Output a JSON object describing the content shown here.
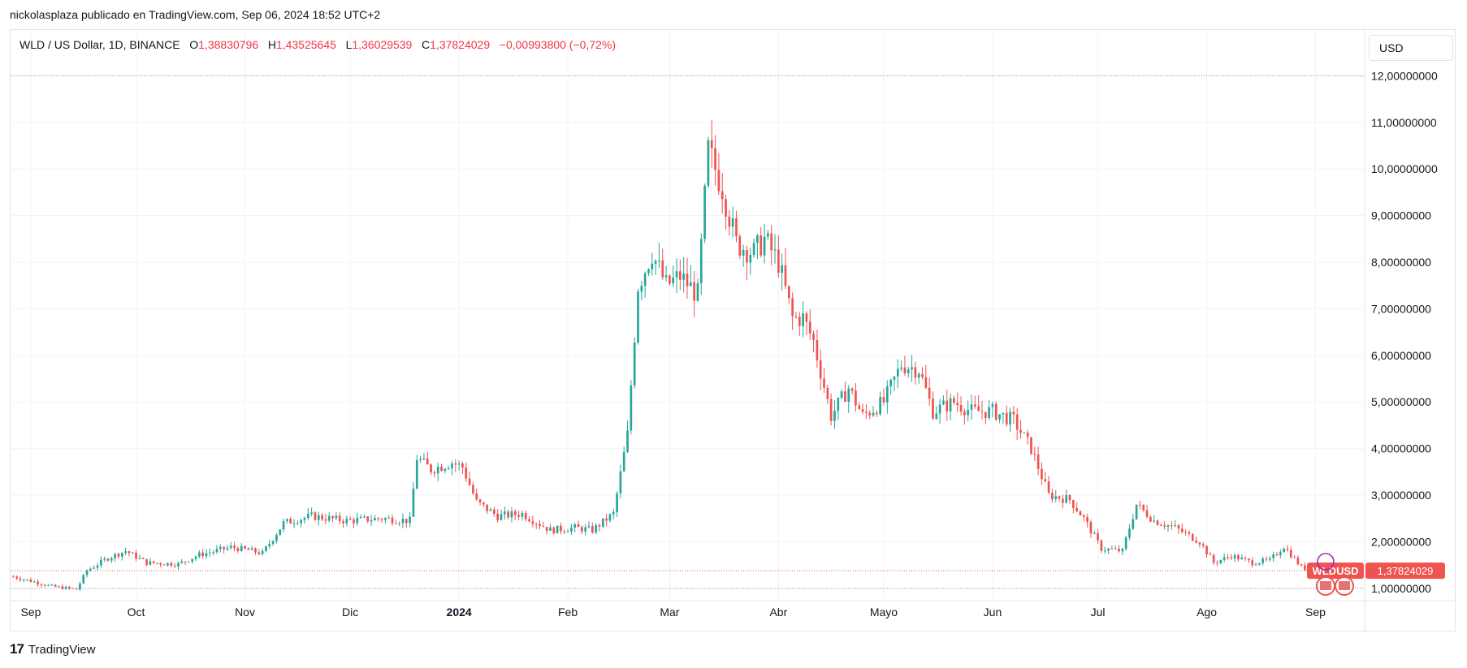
{
  "header": {
    "text": "nickolasplaza publicado en TradingView.com, Sep 06, 2024 18:52 UTC+2"
  },
  "legend": {
    "symbol": "WLD / US Dollar, 1D, BINANCE",
    "o_label": "O",
    "o_value": "1,38830796",
    "h_label": "H",
    "h_value": "1,43525645",
    "l_label": "L",
    "l_value": "1,36029539",
    "c_label": "C",
    "c_value": "1,37824029",
    "change": "−0,00993800 (−0,72%)"
  },
  "currency_button": "USD",
  "price_tag": {
    "symbol": "WLDUSD",
    "value": "1,37824029"
  },
  "footer": {
    "brand": "TradingView"
  },
  "colors": {
    "up": "#26a69a",
    "down": "#ef5350",
    "grid": "#f0f3fa",
    "text": "#131722"
  },
  "chart_data": {
    "type": "candlestick",
    "y_range": [
      0.3,
      13.0
    ],
    "y_ticks": [
      {
        "v": 1,
        "label": "1,00000000"
      },
      {
        "v": 2,
        "label": "2,00000000"
      },
      {
        "v": 3,
        "label": "3,00000000"
      },
      {
        "v": 4,
        "label": "4,00000000"
      },
      {
        "v": 5,
        "label": "5,00000000"
      },
      {
        "v": 6,
        "label": "6,00000000"
      },
      {
        "v": 7,
        "label": "7,00000000"
      },
      {
        "v": 8,
        "label": "8,00000000"
      },
      {
        "v": 9,
        "label": "9,00000000"
      },
      {
        "v": 10,
        "label": "10,00000000"
      },
      {
        "v": 11,
        "label": "11,00000000"
      },
      {
        "v": 12,
        "label": "12,00000000"
      }
    ],
    "x_ticks": [
      {
        "d": 0,
        "label": "Sep",
        "bold": false
      },
      {
        "d": 30,
        "label": "Oct",
        "bold": false
      },
      {
        "d": 61,
        "label": "Nov",
        "bold": false
      },
      {
        "d": 91,
        "label": "Dic",
        "bold": false
      },
      {
        "d": 122,
        "label": "2024",
        "bold": true
      },
      {
        "d": 153,
        "label": "Feb",
        "bold": false
      },
      {
        "d": 182,
        "label": "Mar",
        "bold": false
      },
      {
        "d": 213,
        "label": "Abr",
        "bold": false
      },
      {
        "d": 243,
        "label": "Mayo",
        "bold": false
      },
      {
        "d": 274,
        "label": "Jun",
        "bold": false
      },
      {
        "d": 304,
        "label": "Jul",
        "bold": false
      },
      {
        "d": 335,
        "label": "Ago",
        "bold": false
      },
      {
        "d": 366,
        "label": "Sep",
        "bold": false
      }
    ],
    "x_range": [
      -6,
      380
    ],
    "high_line": 12.0,
    "low_line": 1.0,
    "last_close": 1.378,
    "close_keyframes": [
      [
        -5,
        1.25
      ],
      [
        2,
        1.12
      ],
      [
        6,
        1.04
      ],
      [
        13,
        0.98
      ],
      [
        16,
        1.38
      ],
      [
        22,
        1.65
      ],
      [
        27,
        1.8
      ],
      [
        33,
        1.55
      ],
      [
        42,
        1.52
      ],
      [
        48,
        1.72
      ],
      [
        57,
        1.88
      ],
      [
        62,
        1.82
      ],
      [
        66,
        1.75
      ],
      [
        72,
        2.4
      ],
      [
        80,
        2.55
      ],
      [
        90,
        2.45
      ],
      [
        100,
        2.5
      ],
      [
        108,
        2.45
      ],
      [
        110,
        3.8
      ],
      [
        114,
        3.55
      ],
      [
        120,
        3.7
      ],
      [
        123,
        3.6
      ],
      [
        127,
        2.85
      ],
      [
        133,
        2.55
      ],
      [
        140,
        2.6
      ],
      [
        148,
        2.25
      ],
      [
        155,
        2.3
      ],
      [
        160,
        2.25
      ],
      [
        166,
        2.6
      ],
      [
        170,
        4.3
      ],
      [
        173,
        7.5
      ],
      [
        177,
        8.2
      ],
      [
        181,
        7.5
      ],
      [
        185,
        7.7
      ],
      [
        190,
        7.3
      ],
      [
        193,
        10.4
      ],
      [
        197,
        9.6
      ],
      [
        201,
        8.4
      ],
      [
        206,
        8.2
      ],
      [
        209,
        8.5
      ],
      [
        213,
        8.0
      ],
      [
        217,
        6.8
      ],
      [
        220,
        6.8
      ],
      [
        223,
        6.3
      ],
      [
        228,
        4.7
      ],
      [
        233,
        5.3
      ],
      [
        237,
        4.7
      ],
      [
        243,
        5.0
      ],
      [
        248,
        5.8
      ],
      [
        253,
        5.7
      ],
      [
        257,
        4.8
      ],
      [
        263,
        5.0
      ],
      [
        268,
        4.8
      ],
      [
        274,
        4.8
      ],
      [
        280,
        4.6
      ],
      [
        285,
        4.0
      ],
      [
        290,
        3.0
      ],
      [
        296,
        2.9
      ],
      [
        300,
        2.5
      ],
      [
        305,
        1.85
      ],
      [
        311,
        1.8
      ],
      [
        315,
        2.8
      ],
      [
        320,
        2.45
      ],
      [
        326,
        2.3
      ],
      [
        333,
        2.0
      ],
      [
        337,
        1.55
      ],
      [
        342,
        1.7
      ],
      [
        348,
        1.55
      ],
      [
        353,
        1.6
      ],
      [
        357,
        1.9
      ],
      [
        362,
        1.45
      ],
      [
        365,
        1.4
      ],
      [
        367,
        1.38
      ]
    ]
  }
}
